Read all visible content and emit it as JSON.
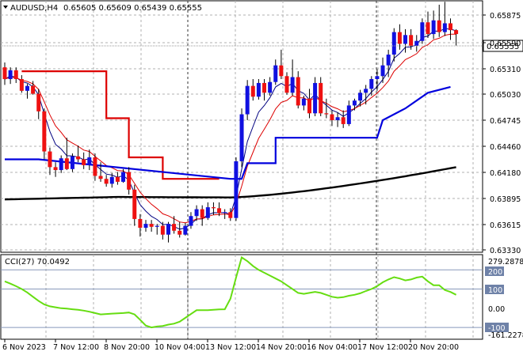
{
  "header": {
    "symbol_caption": "AUDUSD,H4",
    "ohlc_caption": "0.65605 0.65609 0.65439 0.65555"
  },
  "indicator_caption": "CCI(27) 70.0492",
  "current_price_label": "0.65555",
  "colors": {
    "bull": "#1010e0",
    "bear": "#ee1111",
    "black_ma": "#000000",
    "red_line": "#dd0000",
    "blue_line": "#0000dd",
    "cci": "#66dd11",
    "level_line": "#8899bb"
  },
  "chart_data": [
    {
      "type": "candlestick",
      "y_ticks": [
        "0.65875",
        "0.65590",
        "0.65310",
        "0.65030",
        "0.64745",
        "0.64460",
        "0.64180",
        "0.63895",
        "0.63615",
        "0.63330"
      ],
      "ylim": [
        0.6333,
        0.659
      ],
      "x_ticks": [
        "6 Nov 2023",
        "7 Nov 12:00",
        "8 Nov 20:00",
        "10 Nov 04:00",
        "13 Nov 12:00",
        "14 Nov 20:00",
        "16 Nov 04:00",
        "17 Nov 12:00",
        "20 Nov 20:00"
      ],
      "candles": [
        [
          0.6522,
          0.6527,
          0.6504,
          0.651
        ],
        [
          0.651,
          0.6522,
          0.6505,
          0.6519
        ],
        [
          0.6519,
          0.6522,
          0.6506,
          0.651
        ],
        [
          0.651,
          0.6514,
          0.6496,
          0.6498
        ],
        [
          0.6498,
          0.6505,
          0.649,
          0.6503
        ],
        [
          0.6503,
          0.6508,
          0.6494,
          0.6495
        ],
        [
          0.6495,
          0.65,
          0.6469,
          0.6477
        ],
        [
          0.6477,
          0.648,
          0.6428,
          0.6436
        ],
        [
          0.6436,
          0.644,
          0.6412,
          0.642
        ],
        [
          0.642,
          0.6425,
          0.641,
          0.6417
        ],
        [
          0.6417,
          0.6432,
          0.6414,
          0.6429
        ],
        [
          0.6429,
          0.645,
          0.6417,
          0.6418
        ],
        [
          0.6418,
          0.6434,
          0.6415,
          0.6431
        ],
        [
          0.6431,
          0.6442,
          0.6425,
          0.6428
        ],
        [
          0.6428,
          0.6435,
          0.6418,
          0.6422
        ],
        [
          0.6422,
          0.6438,
          0.6417,
          0.643
        ],
        [
          0.643,
          0.6434,
          0.6406,
          0.6411
        ],
        [
          0.6411,
          0.6425,
          0.6405,
          0.6408
        ],
        [
          0.6408,
          0.6412,
          0.64,
          0.6403
        ],
        [
          0.6403,
          0.6414,
          0.6399,
          0.641
        ],
        [
          0.641,
          0.6415,
          0.6402,
          0.6405
        ],
        [
          0.6405,
          0.6418,
          0.6404,
          0.6415
        ],
        [
          0.6415,
          0.642,
          0.6392,
          0.6397
        ],
        [
          0.6397,
          0.6402,
          0.636,
          0.6367
        ],
        [
          0.6367,
          0.6372,
          0.6349,
          0.6358
        ],
        [
          0.6358,
          0.6366,
          0.6354,
          0.6362
        ],
        [
          0.6362,
          0.6366,
          0.6354,
          0.6359
        ],
        [
          0.6359,
          0.6362,
          0.6351,
          0.636
        ],
        [
          0.636,
          0.6364,
          0.6346,
          0.6351
        ],
        [
          0.6351,
          0.6364,
          0.6343,
          0.6362
        ],
        [
          0.6362,
          0.637,
          0.6352,
          0.6355
        ],
        [
          0.6355,
          0.6364,
          0.6348,
          0.6351
        ],
        [
          0.6351,
          0.6363,
          0.635,
          0.636
        ],
        [
          0.636,
          0.6374,
          0.6357,
          0.637
        ],
        [
          0.637,
          0.6381,
          0.6365,
          0.6377
        ],
        [
          0.6377,
          0.6381,
          0.636,
          0.6368
        ],
        [
          0.6368,
          0.6384,
          0.6366,
          0.6379
        ],
        [
          0.6379,
          0.6384,
          0.6371,
          0.6378
        ],
        [
          0.6378,
          0.6384,
          0.637,
          0.6373
        ],
        [
          0.6373,
          0.6377,
          0.6367,
          0.6374
        ],
        [
          0.6374,
          0.6378,
          0.6365,
          0.6368
        ],
        [
          0.6368,
          0.643,
          0.6365,
          0.6426
        ],
        [
          0.6426,
          0.648,
          0.642,
          0.6474
        ],
        [
          0.6474,
          0.6509,
          0.6468,
          0.6503
        ],
        [
          0.6503,
          0.651,
          0.6488,
          0.6492
        ],
        [
          0.6492,
          0.651,
          0.6489,
          0.6506
        ],
        [
          0.6506,
          0.651,
          0.6488,
          0.6496
        ],
        [
          0.6496,
          0.6512,
          0.6493,
          0.6507
        ],
        [
          0.6507,
          0.653,
          0.6504,
          0.6524
        ],
        [
          0.6524,
          0.654,
          0.651,
          0.6513
        ],
        [
          0.6513,
          0.6517,
          0.6494,
          0.6496
        ],
        [
          0.6496,
          0.653,
          0.6493,
          0.6512
        ],
        [
          0.6512,
          0.6518,
          0.648,
          0.6483
        ],
        [
          0.6483,
          0.6493,
          0.6478,
          0.649
        ],
        [
          0.649,
          0.65,
          0.647,
          0.6475
        ],
        [
          0.6475,
          0.6512,
          0.6472,
          0.6506
        ],
        [
          0.6506,
          0.6512,
          0.6472,
          0.6475
        ],
        [
          0.6475,
          0.649,
          0.647,
          0.6474
        ],
        [
          0.6474,
          0.6478,
          0.6462,
          0.6468
        ],
        [
          0.6468,
          0.6476,
          0.6461,
          0.6471
        ],
        [
          0.6471,
          0.6478,
          0.646,
          0.6464
        ],
        [
          0.6464,
          0.6488,
          0.6462,
          0.6483
        ],
        [
          0.6483,
          0.649,
          0.6478,
          0.6488
        ],
        [
          0.6488,
          0.6499,
          0.6482,
          0.6496
        ],
        [
          0.6496,
          0.6504,
          0.6484,
          0.65
        ],
        [
          0.65,
          0.6513,
          0.6493,
          0.651
        ],
        [
          0.651,
          0.652,
          0.6498,
          0.6513
        ],
        [
          0.6513,
          0.6532,
          0.6506,
          0.6524
        ],
        [
          0.6524,
          0.654,
          0.6512,
          0.6535
        ],
        [
          0.6535,
          0.6562,
          0.6528,
          0.6558
        ],
        [
          0.6558,
          0.6566,
          0.654,
          0.6546
        ],
        [
          0.6546,
          0.6561,
          0.6537,
          0.6555
        ],
        [
          0.6555,
          0.6561,
          0.654,
          0.6544
        ],
        [
          0.6544,
          0.6555,
          0.6538,
          0.6549
        ],
        [
          0.6549,
          0.6572,
          0.6546,
          0.6568
        ],
        [
          0.6568,
          0.6579,
          0.6552,
          0.6556
        ],
        [
          0.6556,
          0.658,
          0.6551,
          0.657
        ],
        [
          0.657,
          0.6586,
          0.6553,
          0.6558
        ],
        [
          0.6558,
          0.6589,
          0.6554,
          0.6567
        ],
        [
          0.6567,
          0.6572,
          0.655,
          0.656
        ],
        [
          0.656,
          0.6561,
          0.6544,
          0.6556
        ]
      ],
      "moving_averages": [
        {
          "color": "#000000",
          "values": [
            0.6387,
            0.642
          ]
        },
        {
          "color": "#0000dd",
          "values": [
            0.6428,
            0.6502
          ]
        },
        {
          "color": "#dd0000",
          "values": [
            0.6493,
            0.6549
          ]
        }
      ],
      "series": [
        {
          "kind": "step",
          "color": "#dd0000",
          "values": [
            0.6518,
            0.6518,
            0.6518,
            0.6518,
            0.6518,
            0.6518,
            0.6518,
            0.6518,
            0.6518,
            0.6518,
            0.6518,
            0.6518,
            0.6518,
            0.6518,
            0.647,
            0.647,
            0.647,
            0.647,
            0.643,
            0.643,
            0.643,
            0.643,
            0.643,
            0.643,
            0.6408,
            0.6408,
            0.6408,
            0.6408,
            0.6408,
            0.6408,
            0.6408,
            0.6408,
            0.6408,
            0.6408,
            0.6408
          ]
        },
        {
          "kind": "step",
          "color": "#0000dd",
          "values": [
            0.6428,
            0.6428,
            0.6428,
            0.6428,
            0.6428,
            0.6428,
            0.6428,
            0.6428,
            0.6428,
            0.6428,
            0.6428,
            0.6428,
            0.6428,
            0.6428,
            0.6428,
            0.6428,
            0.6428,
            0.6428,
            0.6428,
            0.6428,
            0.6428,
            0.6428,
            0.6428,
            0.6428,
            0.6428,
            0.6428,
            0.6428,
            0.6428,
            0.6428,
            0.6428,
            0.6428,
            0.6428,
            0.6428,
            0.6428,
            0.6428,
            0.6428,
            0.6428,
            0.6428,
            0.6428,
            0.6428,
            0.6428,
            0.6428,
            0.6428,
            0.6428,
            0.6428,
            0.6428,
            0.6428,
            0.6428,
            0.6428,
            0.6428,
            0.6428,
            0.6428,
            0.6428,
            0.6428,
            0.6428,
            0.6428,
            0.6428,
            0.6428,
            0.6428,
            0.6428,
            0.6428,
            0.6428,
            0.6428,
            0.6428,
            0.6428,
            0.6428,
            0.6428,
            0.6428,
            0.6428,
            0.6428,
            0.6428,
            0.6428,
            0.6428,
            0.6428,
            0.6428,
            0.6428,
            0.6428,
            0.6428,
            0.6428,
            0.6428
          ]
        }
      ]
    },
    {
      "type": "line",
      "title": "CCI(27) 70.0492",
      "y_ticks": [
        "279.2878",
        "200",
        "100",
        "0.00",
        "-100",
        "-161.2278"
      ],
      "levels": [
        200,
        100,
        -100
      ],
      "ylim": [
        -161.2278,
        279.2878
      ],
      "values": [
        140,
        128,
        115,
        100,
        82,
        60,
        38,
        20,
        10,
        5,
        0,
        -2,
        -5,
        -8,
        -12,
        -18,
        -25,
        -32,
        -30,
        -28,
        -26,
        -25,
        -22,
        -32,
        -60,
        -90,
        -100,
        -95,
        -92,
        -85,
        -80,
        -70,
        -50,
        -30,
        -10,
        -10,
        -10,
        -8,
        -6,
        -5,
        50,
        160,
        265,
        245,
        220,
        200,
        185,
        170,
        155,
        140,
        120,
        100,
        80,
        75,
        80,
        85,
        80,
        70,
        60,
        55,
        58,
        65,
        70,
        78,
        90,
        100,
        115,
        135,
        150,
        162,
        155,
        145,
        150,
        160,
        165,
        140,
        120,
        120,
        95,
        85,
        70
      ]
    }
  ]
}
